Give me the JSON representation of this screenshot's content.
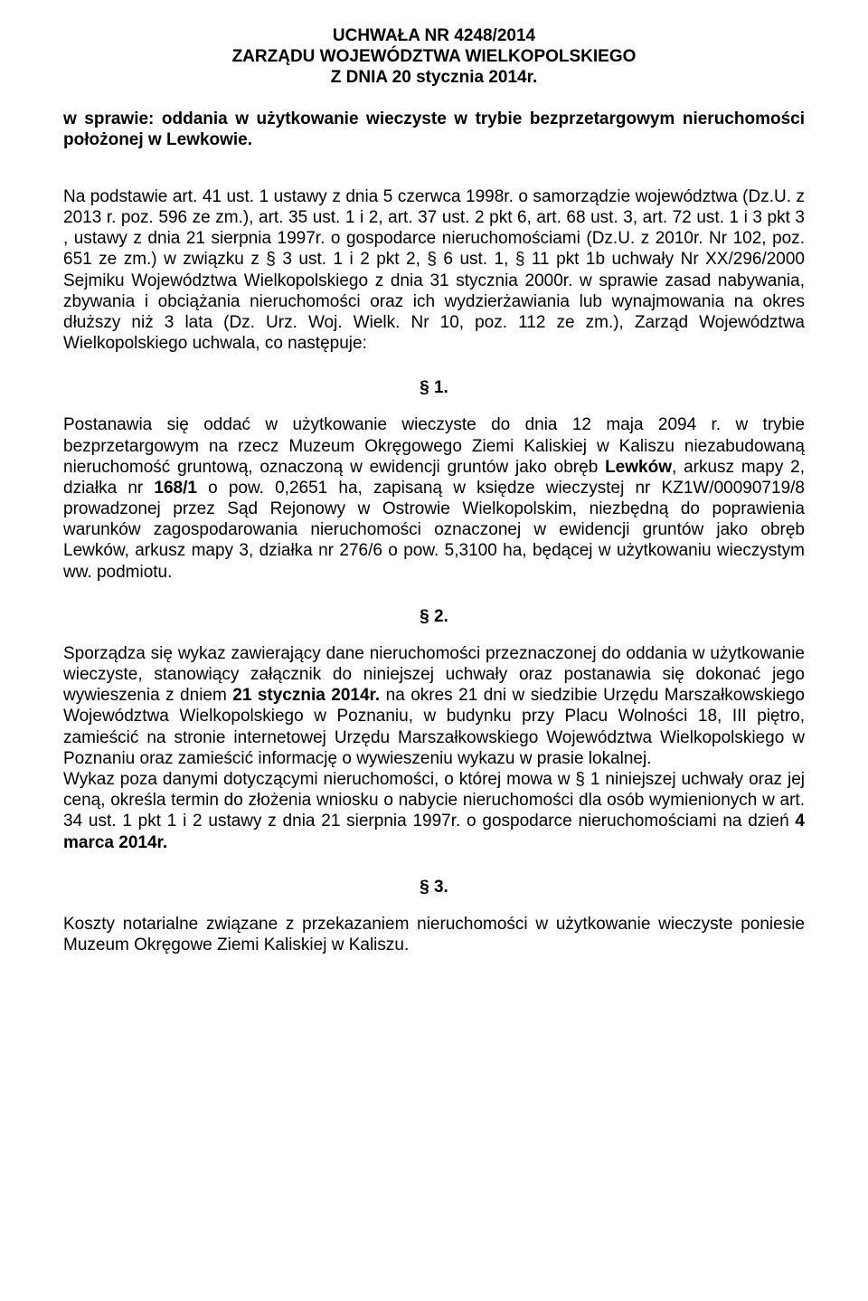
{
  "header": {
    "line1": "UCHWAŁA NR  4248/2014",
    "line2": "ZARZĄDU WOJEWÓDZTWA WIELKOPOLSKIEGO",
    "line3": "Z DNIA  20 stycznia 2014r."
  },
  "subject": {
    "lead": "w sprawie: oddania  w użytkowanie  wieczyste w  trybie  bezprzetargowym nieruchomości położonej w Lewkowie."
  },
  "basis": {
    "text": "Na podstawie art. 41 ust. 1 ustawy z dnia 5 czerwca 1998r. o samorządzie województwa (Dz.U. z 2013 r. poz. 596 ze zm.), art. 35 ust. 1 i 2, art. 37 ust. 2  pkt 6, art. 68 ust. 3, art. 72 ust. 1 i 3 pkt 3 , ustawy  z dnia 21 sierpnia 1997r.  o gospodarce nieruchomościami (Dz.U. z 2010r. Nr 102, poz. 651 ze zm.)  w związku z § 3 ust. 1 i 2 pkt 2, § 6 ust. 1, § 11 pkt 1b uchwały Nr XX/296/2000 Sejmiku Województwa Wielkopolskiego z dnia 31 stycznia 2000r. w sprawie zasad nabywania, zbywania i obciążania nieruchomości oraz ich wydzierżawiania  lub wynajmowania na okres dłuższy niż 3 lata (Dz. Urz. Woj. Wielk. Nr 10, poz. 112 ze zm.), Zarząd Województwa Wielkopolskiego uchwala, co następuje:"
  },
  "sections": {
    "s1": {
      "num": "§ 1.",
      "p_before_bold1": "Postanawia się oddać w użytkowanie wieczyste do dnia 12 maja 2094 r. w trybie bezprzetargowym  na  rzecz Muzeum  Okręgowego  Ziemi  Kaliskiej  w Kaliszu niezabudowaną nieruchomość gruntową, oznaczoną w ewidencji gruntów jako obręb ",
      "bold1": "Lewków",
      "p_mid1": ", arkusz  mapy 2, działka nr ",
      "bold2": "168/1",
      "p_after_bold2": " o pow.  0,2651 ha, zapisaną  w księdze wieczystej nr KZ1W/00090719/8 prowadzonej przez Sąd  Rejonowy w Ostrowie Wielkopolskim,  niezbędną  do  poprawienia  warunków  zagospodarowania nieruchomości oznaczonej w ewidencji gruntów  jako obręb Lewków, arkusz  mapy 3, działka nr 276/6 o pow. 5,3100 ha, będącej w użytkowaniu wieczystym ww. podmiotu."
    },
    "s2": {
      "num": "§ 2.",
      "p1_a": "Sporządza się wykaz zawierający dane nieruchomości przeznaczonej do oddania w użytkowanie wieczyste, stanowiący załącznik do niniejszej uchwały oraz postanawia się dokonać jego wywieszenia z dniem  ",
      "p1_bold": "21 stycznia 2014r.",
      "p1_b": " na okres 21 dni w siedzibie Urzędu Marszałkowskiego Województwa Wielkopolskiego w Poznaniu,  w budynku przy Placu Wolności 18, III piętro, zamieścić na stronie internetowej Urzędu Marszałkowskiego Województwa Wielkopolskiego w Poznaniu oraz zamieścić informację o wywieszeniu wykazu w prasie lokalnej.",
      "p2_a": "Wykaz poza danymi dotyczącymi nieruchomości, o której mowa w § 1 niniejszej uchwały oraz jej ceną, określa termin do złożenia wniosku o nabycie nieruchomości dla osób wymienionych w art. 34 ust. 1 pkt 1 i 2 ustawy  z dnia 21 sierpnia 1997r. o gospodarce nieruchomościami na dzień  ",
      "p2_bold": "4 marca 2014r."
    },
    "s3": {
      "num": "§ 3.",
      "p": "Koszty notarialne związane z przekazaniem nieruchomości w użytkowanie wieczyste poniesie Muzeum  Okręgowe  Ziemi  Kaliskiej  w Kaliszu."
    }
  }
}
